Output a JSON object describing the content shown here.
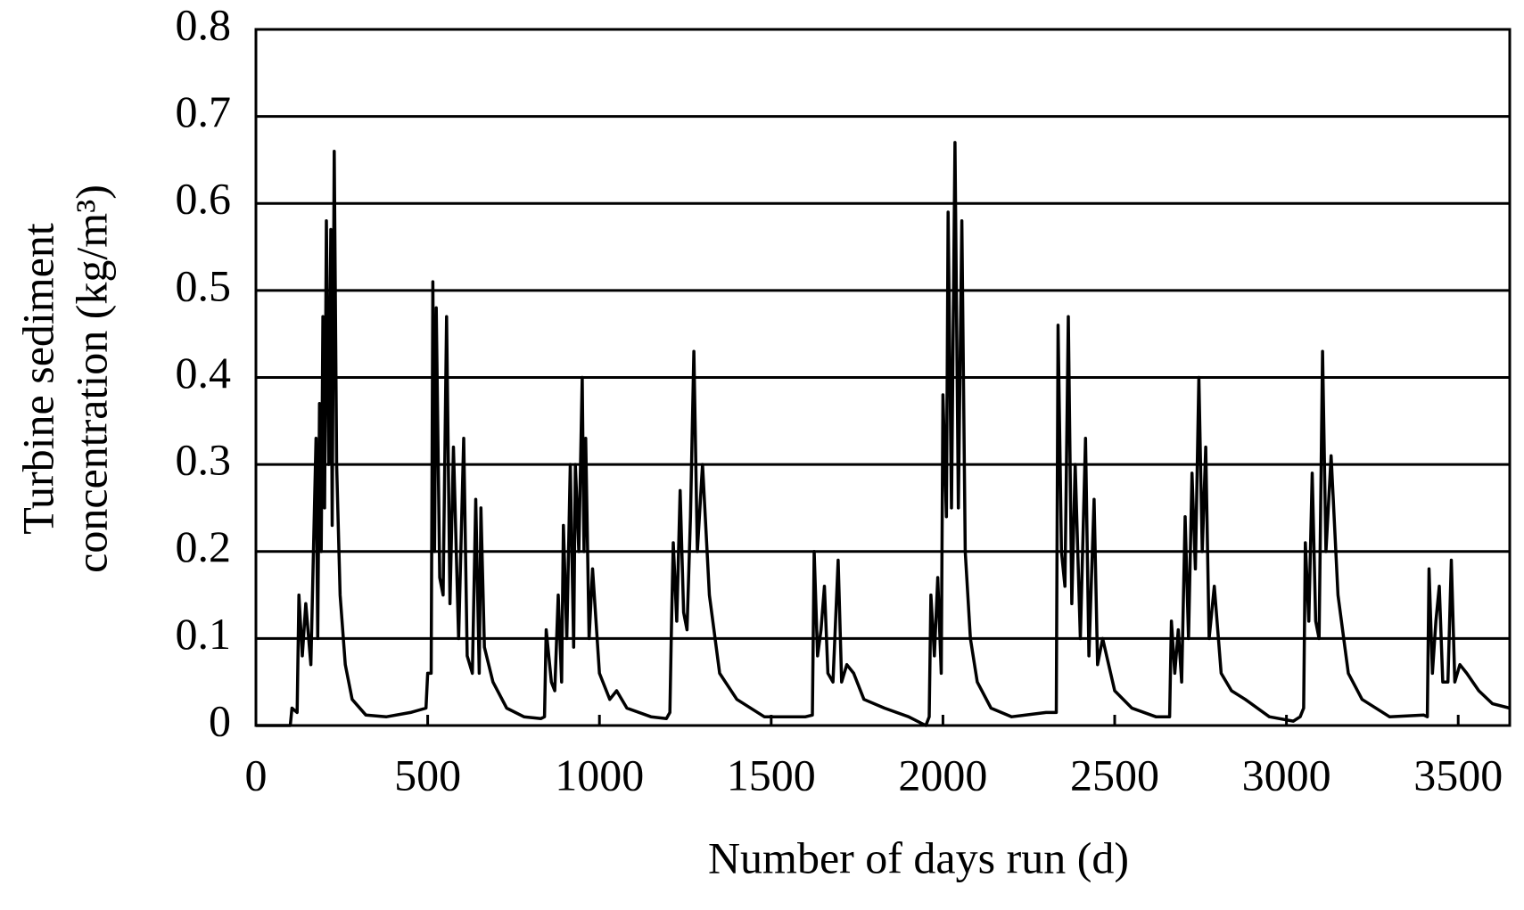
{
  "chart_data": {
    "type": "line",
    "xlabel": "Number of days run (d)",
    "ylabel": [
      "Turbine sediment",
      "concentration (kg/m³)"
    ],
    "color": "#000000",
    "grid": true,
    "xlim": [
      0,
      3650
    ],
    "xticks": [
      0,
      500,
      1000,
      1500,
      2000,
      2500,
      3000,
      3500
    ],
    "ylim": [
      0,
      0.8
    ],
    "yticks": [
      0,
      0.1,
      0.2,
      0.3,
      0.4,
      0.5,
      0.6,
      0.7,
      0.8
    ],
    "x": [
      0,
      100,
      105,
      120,
      125,
      135,
      145,
      160,
      175,
      180,
      185,
      190,
      195,
      200,
      205,
      212,
      218,
      222,
      228,
      235,
      245,
      260,
      280,
      320,
      380,
      450,
      495,
      500,
      510,
      515,
      520,
      525,
      535,
      545,
      555,
      565,
      575,
      590,
      605,
      615,
      630,
      640,
      650,
      655,
      665,
      690,
      730,
      780,
      830,
      840,
      845,
      860,
      870,
      880,
      890,
      895,
      905,
      915,
      925,
      930,
      940,
      950,
      955,
      960,
      970,
      980,
      1000,
      1030,
      1050,
      1080,
      1150,
      1195,
      1205,
      1210,
      1215,
      1225,
      1235,
      1245,
      1255,
      1265,
      1275,
      1285,
      1300,
      1320,
      1350,
      1400,
      1480,
      1550,
      1600,
      1620,
      1625,
      1635,
      1645,
      1655,
      1665,
      1680,
      1695,
      1705,
      1720,
      1740,
      1770,
      1830,
      1900,
      1950,
      1960,
      1965,
      1975,
      1985,
      1995,
      2000,
      2010,
      2015,
      2025,
      2035,
      2045,
      2055,
      2065,
      2080,
      2100,
      2140,
      2200,
      2300,
      2330,
      2335,
      2345,
      2355,
      2365,
      2375,
      2385,
      2400,
      2415,
      2425,
      2440,
      2450,
      2465,
      2500,
      2550,
      2620,
      2660,
      2665,
      2675,
      2685,
      2695,
      2705,
      2715,
      2725,
      2735,
      2745,
      2755,
      2765,
      2775,
      2790,
      2810,
      2840,
      2880,
      2950,
      3020,
      3040,
      3050,
      3055,
      3065,
      3075,
      3085,
      3095,
      3105,
      3115,
      3130,
      3150,
      3180,
      3220,
      3300,
      3400,
      3410,
      3415,
      3425,
      3435,
      3445,
      3455,
      3470,
      3480,
      3490,
      3505,
      3525,
      3560,
      3600,
      3650
    ],
    "values": [
      0,
      0,
      0.02,
      0.015,
      0.15,
      0.08,
      0.14,
      0.07,
      0.33,
      0.1,
      0.37,
      0.2,
      0.47,
      0.25,
      0.58,
      0.3,
      0.57,
      0.23,
      0.66,
      0.3,
      0.15,
      0.07,
      0.03,
      0.012,
      0.01,
      0.015,
      0.02,
      0.06,
      0.06,
      0.51,
      0.2,
      0.48,
      0.17,
      0.15,
      0.47,
      0.14,
      0.32,
      0.1,
      0.33,
      0.08,
      0.06,
      0.26,
      0.06,
      0.25,
      0.09,
      0.05,
      0.02,
      0.01,
      0.008,
      0.01,
      0.11,
      0.05,
      0.04,
      0.15,
      0.05,
      0.23,
      0.1,
      0.3,
      0.09,
      0.3,
      0.2,
      0.4,
      0.2,
      0.33,
      0.1,
      0.18,
      0.06,
      0.03,
      0.04,
      0.02,
      0.01,
      0.008,
      0.015,
      0.12,
      0.21,
      0.12,
      0.27,
      0.13,
      0.11,
      0.24,
      0.43,
      0.2,
      0.3,
      0.15,
      0.06,
      0.03,
      0.01,
      0.01,
      0.01,
      0.012,
      0.2,
      0.08,
      0.11,
      0.16,
      0.06,
      0.05,
      0.19,
      0.05,
      0.07,
      0.06,
      0.03,
      0.02,
      0.01,
      0,
      0.01,
      0.15,
      0.08,
      0.17,
      0.06,
      0.38,
      0.24,
      0.59,
      0.25,
      0.67,
      0.25,
      0.58,
      0.2,
      0.1,
      0.05,
      0.02,
      0.01,
      0.015,
      0.015,
      0.46,
      0.2,
      0.16,
      0.47,
      0.14,
      0.3,
      0.1,
      0.33,
      0.08,
      0.26,
      0.07,
      0.1,
      0.04,
      0.02,
      0.01,
      0.01,
      0.12,
      0.06,
      0.11,
      0.05,
      0.24,
      0.1,
      0.29,
      0.18,
      0.4,
      0.2,
      0.32,
      0.1,
      0.16,
      0.06,
      0.04,
      0.03,
      0.01,
      0.005,
      0.01,
      0.02,
      0.21,
      0.12,
      0.29,
      0.12,
      0.1,
      0.43,
      0.2,
      0.31,
      0.15,
      0.06,
      0.03,
      0.01,
      0.012,
      0.01,
      0.18,
      0.06,
      0.12,
      0.16,
      0.05,
      0.05,
      0.19,
      0.05,
      0.07,
      0.06,
      0.04,
      0.025,
      0.02
    ]
  }
}
